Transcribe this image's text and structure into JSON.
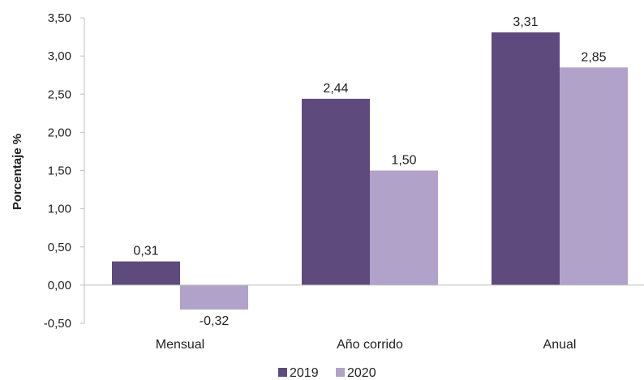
{
  "chart_data": {
    "type": "bar",
    "categories": [
      "Mensual",
      "Año corrido",
      "Anual"
    ],
    "series": [
      {
        "name": "2019",
        "values": [
          0.31,
          2.44,
          3.31
        ],
        "labels": [
          "0,31",
          "2,44",
          "3,31"
        ],
        "color": "#5e4a7d"
      },
      {
        "name": "2020",
        "values": [
          -0.32,
          1.5,
          2.85
        ],
        "labels": [
          "-0,32",
          "1,50",
          "2,85"
        ],
        "color": "#b1a2c9"
      }
    ],
    "title": "",
    "xlabel": "",
    "ylabel": "Porcentaje %",
    "ylim": [
      -0.5,
      3.5
    ],
    "yticks": [
      -0.5,
      0,
      0.5,
      1,
      1.5,
      2,
      2.5,
      3,
      3.5
    ],
    "ytick_labels": [
      "-0,50",
      "0,00",
      "0,50",
      "1,00",
      "1,50",
      "2,00",
      "2,50",
      "3,00",
      "3,50"
    ],
    "legend_position": "bottom",
    "grid": false
  }
}
